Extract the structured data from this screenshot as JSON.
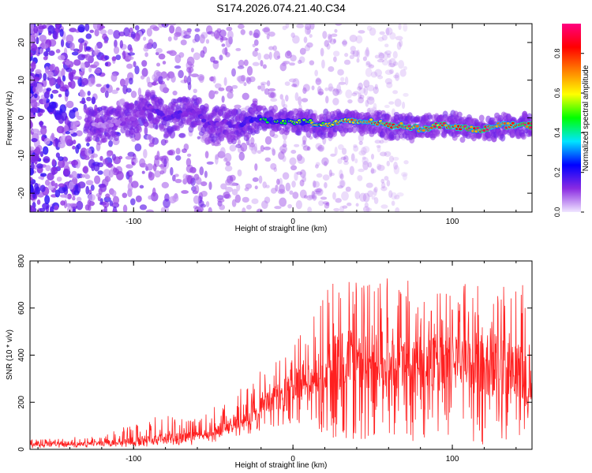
{
  "figure_title": "S174.2026.074.21.40.C34",
  "chart_data": [
    {
      "type": "heatmap",
      "id": "spectrogram",
      "title": "",
      "xlabel": "Height of straight line (km)",
      "ylabel": "Frequency (Hz)",
      "xlim": [
        -165,
        150
      ],
      "ylim": [
        -25,
        25
      ],
      "xticks": [
        -100,
        0,
        100
      ],
      "yticks": [
        -20,
        -10,
        0,
        10,
        20
      ],
      "xtick_labels": [
        "-100",
        "0",
        "100"
      ],
      "ytick_labels": [
        "-20",
        "-10",
        "0",
        "10",
        "20"
      ],
      "colorbar": {
        "label": "Normalized spectral amplitude",
        "range": [
          0,
          0.95
        ],
        "ticks": [
          0,
          0.2,
          0.4,
          0.6,
          0.8
        ],
        "tick_labels": [
          "0.0",
          "0.2",
          "0.4",
          "0.6",
          "0.8"
        ],
        "colormap": [
          "#f0e6ff",
          "#8a2be2",
          "#0000ff",
          "#00e5ff",
          "#00ff00",
          "#ffff00",
          "#ff8000",
          "#ff0000",
          "#ff0080"
        ]
      },
      "ridge": {
        "description_values": "dominant frequency trace (Hz) vs height (km)",
        "x": [
          -120,
          -100,
          -90,
          -80,
          -70,
          -60,
          -55,
          -45,
          -35,
          -25,
          -10,
          0,
          10,
          20,
          30,
          40,
          50,
          60,
          70,
          80,
          90,
          100,
          110,
          120,
          130,
          140,
          148
        ],
        "y": [
          -2,
          0,
          3,
          0,
          1,
          2,
          -2,
          -1,
          -2,
          0,
          -1,
          -1,
          -1,
          -2,
          -1,
          -1,
          -1,
          -2,
          -2,
          -3,
          -2,
          -2,
          -3,
          -3,
          -2,
          -2,
          -2
        ],
        "peak_amplitude": [
          0.15,
          0.25,
          0.3,
          0.35,
          0.35,
          0.3,
          0.35,
          0.3,
          0.35,
          0.45,
          0.5,
          0.55,
          0.6,
          0.65,
          0.7,
          0.75,
          0.8,
          0.85,
          0.85,
          0.9,
          0.85,
          0.9,
          0.9,
          0.85,
          0.9,
          0.9,
          0.9
        ]
      }
    },
    {
      "type": "line",
      "id": "snr",
      "title": "",
      "xlabel": "Height of straight line (km)",
      "ylabel": "SNR (10 * v/v)",
      "xlim": [
        -165,
        150
      ],
      "ylim": [
        0,
        800
      ],
      "xticks": [
        -100,
        0,
        100
      ],
      "yticks": [
        0,
        200,
        400,
        600,
        800
      ],
      "xtick_labels": [
        "-100",
        "0",
        "100"
      ],
      "ytick_labels": [
        "0",
        "200",
        "400",
        "600",
        "800"
      ],
      "series": [
        {
          "name": "SNR",
          "color": "#ff2020",
          "envelope_x": [
            -165,
            -120,
            -100,
            -80,
            -60,
            -45,
            -30,
            -15,
            0,
            10,
            20,
            30,
            50,
            70,
            90,
            110,
            130,
            145,
            150
          ],
          "envelope_max": [
            40,
            60,
            110,
            150,
            130,
            200,
            270,
            380,
            480,
            560,
            700,
            760,
            740,
            720,
            730,
            700,
            720,
            740,
            300
          ],
          "envelope_min": [
            5,
            8,
            10,
            15,
            20,
            35,
            60,
            90,
            110,
            80,
            60,
            40,
            30,
            30,
            20,
            20,
            15,
            20,
            60
          ],
          "baseline": [
            20,
            25,
            35,
            45,
            55,
            80,
            130,
            200,
            260,
            300,
            340,
            380,
            380,
            370,
            360,
            350,
            340,
            330,
            200
          ]
        }
      ]
    }
  ]
}
